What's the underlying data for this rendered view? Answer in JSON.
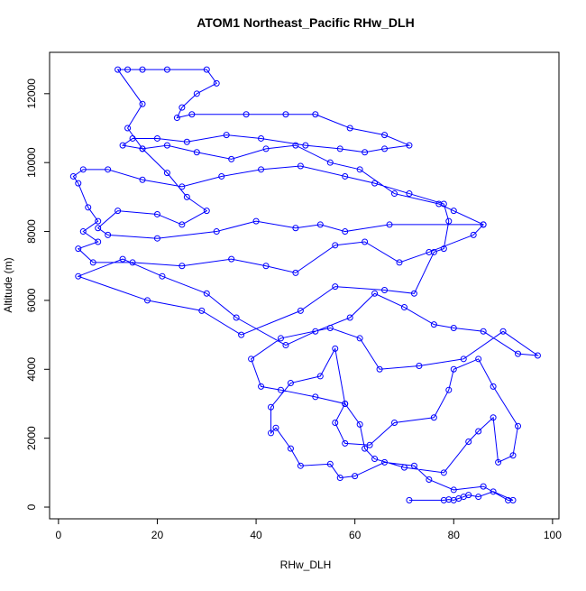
{
  "chart_data": {
    "type": "line",
    "title": "ATOM1 Northeast_Pacific RHw_DLH",
    "xlabel": "RHw_DLH",
    "ylabel": "Altitude (m)",
    "color": "#0000ff",
    "markers": true,
    "x": [
      71,
      78,
      79,
      80,
      81,
      82,
      83,
      85,
      88,
      92,
      91,
      86,
      80,
      75,
      72,
      66,
      60,
      57,
      55,
      49,
      47,
      44,
      43,
      43,
      47,
      53,
      56,
      58,
      61,
      62,
      64,
      70,
      78,
      83,
      85,
      88,
      89,
      92,
      93,
      88,
      85,
      80,
      79,
      76,
      68,
      63,
      58,
      56,
      58,
      52,
      45,
      41,
      39,
      45,
      55,
      61,
      65,
      73,
      82,
      90,
      97,
      93,
      86,
      80,
      76,
      70,
      64,
      59,
      52,
      46,
      36,
      30,
      21,
      13,
      4,
      18,
      29,
      37,
      49,
      56,
      66,
      72,
      76,
      78,
      79,
      78,
      71,
      64,
      58,
      49,
      41,
      33,
      25,
      17,
      10,
      5,
      3,
      4,
      6,
      8,
      5,
      8,
      4,
      7,
      15,
      25,
      35,
      42,
      48,
      56,
      62,
      69,
      75,
      84,
      86,
      80,
      77,
      68,
      61,
      55,
      48,
      42,
      35,
      28,
      22,
      17,
      13,
      15,
      20,
      26,
      34,
      41,
      50,
      57,
      62,
      66,
      71,
      66,
      59,
      52,
      46,
      38,
      27,
      24,
      25,
      28,
      32,
      30,
      22,
      17,
      14,
      12,
      17,
      14,
      17,
      22,
      26,
      30,
      25,
      20,
      12,
      8,
      10,
      20,
      32,
      40,
      48,
      53,
      58,
      67,
      86
    ],
    "values": [
      200,
      200,
      220,
      200,
      250,
      300,
      350,
      300,
      450,
      200,
      200,
      600,
      500,
      800,
      1200,
      1300,
      900,
      850,
      1250,
      1200,
      1700,
      2300,
      2150,
      2900,
      3600,
      3800,
      4600,
      3000,
      2400,
      1700,
      1400,
      1150,
      1000,
      1900,
      2200,
      2600,
      1300,
      1500,
      2350,
      3500,
      4300,
      4000,
      3400,
      2600,
      2450,
      1800,
      1850,
      2450,
      3000,
      3200,
      3400,
      3500,
      4300,
      4900,
      5200,
      4900,
      4000,
      4100,
      4300,
      5100,
      4400,
      4450,
      5100,
      5200,
      5300,
      5800,
      6200,
      5500,
      5100,
      4700,
      5500,
      6200,
      6700,
      7200,
      6700,
      6000,
      5700,
      5000,
      5700,
      6400,
      6300,
      6200,
      7400,
      7500,
      8300,
      8800,
      9100,
      9400,
      9600,
      9900,
      9800,
      9600,
      9300,
      9500,
      9800,
      9800,
      9600,
      9400,
      8700,
      8300,
      8000,
      7700,
      7500,
      7100,
      7100,
      7000,
      7200,
      7000,
      6800,
      7600,
      7700,
      7100,
      7400,
      7900,
      8200,
      8600,
      8800,
      9100,
      9800,
      10000,
      10500,
      10400,
      10100,
      10300,
      10500,
      10400,
      10500,
      10700,
      10700,
      10600,
      10800,
      10700,
      10500,
      10400,
      10300,
      10400,
      10500,
      10800,
      11000,
      11400,
      11400,
      11400,
      11400,
      11300,
      11600,
      12000,
      12300,
      12700,
      12700,
      12700,
      12700,
      12700,
      11700,
      11000,
      10400,
      9700,
      9000,
      8600,
      8200,
      8500,
      8600,
      8100,
      7900,
      7800,
      8000,
      8300,
      8100,
      8200,
      8000,
      8200,
      8200
    ],
    "xlim": [
      -1.8,
      101.3
    ],
    "ylim": [
      -340,
      13200
    ],
    "xticks": [
      0,
      20,
      40,
      60,
      80,
      100
    ],
    "yticks": [
      0,
      2000,
      4000,
      6000,
      8000,
      10000,
      12000
    ]
  }
}
